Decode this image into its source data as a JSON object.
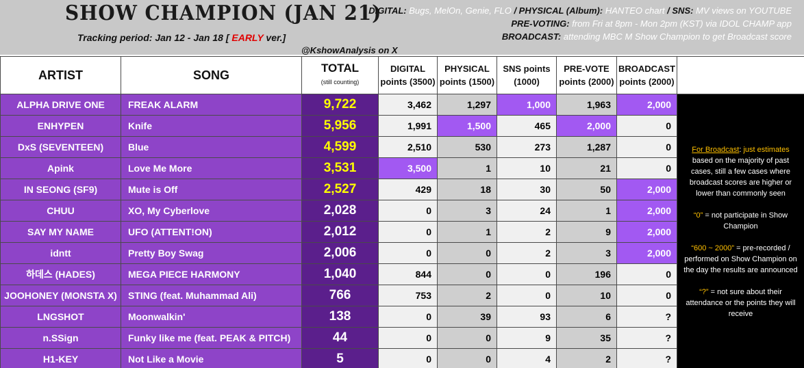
{
  "header": {
    "title": "SHOW CHAMPION (JAN 21)",
    "tracking_prefix": "Tracking period: Jan 12 - Jan 18 [",
    "tracking_early": "EARLY",
    "tracking_suffix": "ver.]",
    "digital_label": "DIGITAL:",
    "digital_value": "Bugs, MelOn, Genie, FLO",
    "physical_label": "/ PHYSICAL (Album):",
    "physical_value": "HANTEO chart",
    "sns_label": "/ SNS:",
    "sns_value": "MV views on YOUTUBE",
    "prevoting_label": "PRE-VOTING:",
    "prevoting_value": "from Fri at 8pm - Mon 2pm (KST) via IDOL CHAMP app",
    "broadcast_label": "BROADCAST:",
    "broadcast_value": "attending MBC M Show Champion to get Broadcast score",
    "handle": "@KshowAnalysis on X"
  },
  "columns": {
    "artist": "ARTIST",
    "song": "SONG",
    "total": "TOTAL",
    "total_sub": "(still counting)",
    "digital": "DIGITAL points (3500)",
    "physical": "PHYSICAL points (1500)",
    "sns": "SNS points (1000)",
    "prevote": "PRE-VOTE points (2000)",
    "broadcast": "BROADCAST points (2000)"
  },
  "rows": [
    {
      "artist": "ALPHA DRIVE ONE",
      "song": "FREAK ALARM",
      "total": "9,722",
      "digital": "3,462",
      "physical": "1,297",
      "sns": "1,000",
      "prevote": "1,963",
      "broadcast": "2,000"
    },
    {
      "artist": "ENHYPEN",
      "song": "Knife",
      "total": "5,956",
      "digital": "1,991",
      "physical": "1,500",
      "sns": "465",
      "prevote": "2,000",
      "broadcast": "0"
    },
    {
      "artist": "DxS (SEVENTEEN)",
      "song": "Blue",
      "total": "4,599",
      "digital": "2,510",
      "physical": "530",
      "sns": "273",
      "prevote": "1,287",
      "broadcast": "0"
    },
    {
      "artist": "Apink",
      "song": "Love Me More",
      "total": "3,531",
      "digital": "3,500",
      "physical": "1",
      "sns": "10",
      "prevote": "21",
      "broadcast": "0"
    },
    {
      "artist": "IN SEONG (SF9)",
      "song": "Mute is Off",
      "total": "2,527",
      "digital": "429",
      "physical": "18",
      "sns": "30",
      "prevote": "50",
      "broadcast": "2,000"
    },
    {
      "artist": "CHUU",
      "song": "XO, My Cyberlove",
      "total": "2,028",
      "digital": "0",
      "physical": "3",
      "sns": "24",
      "prevote": "1",
      "broadcast": "2,000"
    },
    {
      "artist": "SAY MY NAME",
      "song": "UFO (ATTENT!ON)",
      "total": "2,012",
      "digital": "0",
      "physical": "1",
      "sns": "2",
      "prevote": "9",
      "broadcast": "2,000"
    },
    {
      "artist": "idntt",
      "song": "Pretty Boy Swag",
      "total": "2,006",
      "digital": "0",
      "physical": "0",
      "sns": "2",
      "prevote": "3",
      "broadcast": "2,000"
    },
    {
      "artist": "하데스 (HADES)",
      "song": "MEGA PIECE HARMONY",
      "total": "1,040",
      "digital": "844",
      "physical": "0",
      "sns": "0",
      "prevote": "196",
      "broadcast": "0"
    },
    {
      "artist": "JOOHONEY (MONSTA X)",
      "song": "STING (feat. Muhammad Ali)",
      "total": "766",
      "digital": "753",
      "physical": "2",
      "sns": "0",
      "prevote": "10",
      "broadcast": "0"
    },
    {
      "artist": "LNGSHOT",
      "song": "Moonwalkin'",
      "total": "138",
      "digital": "0",
      "physical": "39",
      "sns": "93",
      "prevote": "6",
      "broadcast": "?"
    },
    {
      "artist": "n.SSign",
      "song": "Funky like me (feat. PEAK & PITCH)",
      "total": "44",
      "digital": "0",
      "physical": "0",
      "sns": "9",
      "prevote": "35",
      "broadcast": "?"
    },
    {
      "artist": "H1-KEY",
      "song": "Not Like a Movie",
      "total": "5",
      "digital": "0",
      "physical": "0",
      "sns": "4",
      "prevote": "2",
      "broadcast": "?"
    }
  ],
  "notes": {
    "for_broadcast": "For Broadcast",
    "colon": ":",
    "just_estimates": "just estimates",
    "estimates_text": "based on the majority of past cases, still a few cases where broadcast scores are higher or lower than commonly seen",
    "zero_key": "“0”",
    "zero_text": "= not participate in Show Champion",
    "range_key": "“600 ~ 2000”",
    "range_text": "= pre-recorded / performed on Show Champion on the day the results are announced",
    "q_key": "“?”",
    "q_text": "= not sure about their attendance or the points they will receive"
  },
  "colors": {
    "row_purple": "#8e44c8",
    "total_purple": "#5b1f8c",
    "highlight": "#a259f2",
    "top_total": "#ffff00",
    "early": "#e00000",
    "note_accent": "#ffc000"
  }
}
